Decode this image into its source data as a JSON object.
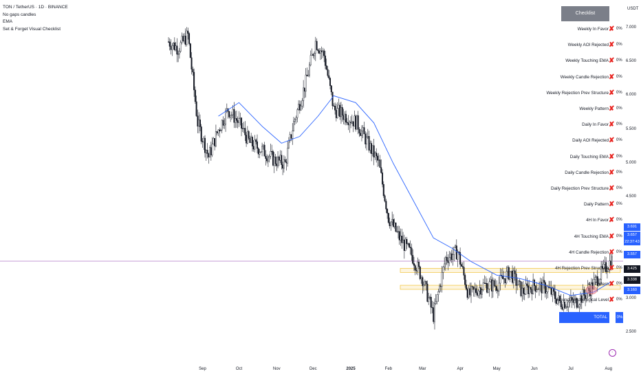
{
  "legend": {
    "symbol_line": "TON / TetherUS · 1D · BINANCE",
    "items": [
      "No gaps candles",
      "EMA",
      "Set & Forget Visual Checklist"
    ]
  },
  "currency": "USDT",
  "colors": {
    "up": "#131722",
    "down": "#131722",
    "ema": "#2962ff",
    "fail": "#e8231f",
    "total_bg": "#2962ff",
    "header_bg": "#7b7f89",
    "zone": "#f2c94c"
  },
  "checklist": {
    "title": "Checklist",
    "items": [
      {
        "label": "Weekly In Favor",
        "mark": "✘",
        "pct": "0%"
      },
      {
        "label": "Weekly AOI Rejected",
        "mark": "✘",
        "pct": "0%"
      },
      {
        "label": "Weekly Touching EMA",
        "mark": "✘",
        "pct": "0%"
      },
      {
        "label": "Weekly Candle Rejection",
        "mark": "✘",
        "pct": "0%"
      },
      {
        "label": "Weekly Rejection Prev Structure",
        "mark": "✘",
        "pct": "0%"
      },
      {
        "label": "Weekly Pattern",
        "mark": "✘",
        "pct": "0%"
      },
      {
        "label": "Daily In Favor",
        "mark": "✘",
        "pct": "0%"
      },
      {
        "label": "Daily AOI Rejected",
        "mark": "✘",
        "pct": "0%"
      },
      {
        "label": "Daily Touching EMA",
        "mark": "✘",
        "pct": "0%"
      },
      {
        "label": "Daily Candle Rejection",
        "mark": "✘",
        "pct": "0%"
      },
      {
        "label": "Daily Rejection Prev Structure",
        "mark": "✘",
        "pct": "0%"
      },
      {
        "label": "Daily Pattern",
        "mark": "✘",
        "pct": "0%"
      },
      {
        "label": "4H In Favor",
        "mark": "✘",
        "pct": "0%"
      },
      {
        "label": "4H Touching EMA",
        "mark": "✘",
        "pct": "0%"
      },
      {
        "label": "4H Candle Rejection",
        "mark": "✘",
        "pct": "0%"
      },
      {
        "label": "4H Rejection Prev Structure",
        "mark": "✘",
        "pct": "0%"
      },
      {
        "label": "4H Pattern",
        "mark": "✘",
        "pct": "0%"
      },
      {
        "label": "Round Psychological Level",
        "mark": "✘",
        "pct": "0%"
      }
    ],
    "total_label": "TOTAL",
    "total_pct": "0%"
  },
  "price_axis": {
    "ticks": [
      "7.000",
      "6.500",
      "6.000",
      "5.500",
      "5.000",
      "4.500",
      "3.000",
      "2.500"
    ],
    "tags": [
      {
        "text": "3.691",
        "color": "#2962ff"
      },
      {
        "text": "3.657",
        "color": "#2962ff"
      },
      {
        "text": "22:37:43",
        "color": "#2962ff"
      },
      {
        "text": "3.557",
        "color": "#2962ff"
      },
      {
        "text": "3.425",
        "color": "#131722"
      },
      {
        "text": "3.338",
        "color": "#131722"
      },
      {
        "text": "3.160",
        "color": "#2962ff"
      }
    ]
  },
  "time_axis": {
    "labels": [
      {
        "text": "Sep",
        "bold": false
      },
      {
        "text": "Oct",
        "bold": false
      },
      {
        "text": "Nov",
        "bold": false
      },
      {
        "text": "Dec",
        "bold": false
      },
      {
        "text": "2025",
        "bold": true
      },
      {
        "text": "Feb",
        "bold": false
      },
      {
        "text": "Mar",
        "bold": false
      },
      {
        "text": "Apr",
        "bold": false
      },
      {
        "text": "May",
        "bold": false
      },
      {
        "text": "Jun",
        "bold": false
      },
      {
        "text": "Jul",
        "bold": false
      },
      {
        "text": "Aug",
        "bold": false
      }
    ]
  },
  "chart_data": {
    "type": "candlestick",
    "symbol": "TON / TetherUS",
    "interval": "1D",
    "exchange": "BINANCE",
    "currency": "USDT",
    "x_range": [
      "2024-08-04",
      "2025-08-04"
    ],
    "y_range": [
      2.4,
      7.2
    ],
    "price_path": [
      [
        "2024-08-04",
        6.8
      ],
      [
        "2024-08-12",
        6.7
      ],
      [
        "2024-08-20",
        6.9
      ],
      [
        "2024-08-28",
        5.6
      ],
      [
        "2024-09-06",
        5.1
      ],
      [
        "2024-09-14",
        5.5
      ],
      [
        "2024-09-22",
        5.8
      ],
      [
        "2024-10-01",
        5.6
      ],
      [
        "2024-10-10",
        5.3
      ],
      [
        "2024-10-20",
        5.2
      ],
      [
        "2024-10-30",
        5.05
      ],
      [
        "2024-11-08",
        5.0
      ],
      [
        "2024-11-15",
        5.6
      ],
      [
        "2024-11-25",
        6.2
      ],
      [
        "2024-12-03",
        6.8
      ],
      [
        "2024-12-10",
        6.6
      ],
      [
        "2024-12-18",
        5.8
      ],
      [
        "2024-12-28",
        5.7
      ],
      [
        "2025-01-06",
        5.6
      ],
      [
        "2025-01-15",
        5.3
      ],
      [
        "2025-01-24",
        5.0
      ],
      [
        "2025-02-01",
        4.2
      ],
      [
        "2025-02-10",
        3.9
      ],
      [
        "2025-02-20",
        3.65
      ],
      [
        "2025-03-01",
        3.3
      ],
      [
        "2025-03-10",
        2.75
      ],
      [
        "2025-03-20",
        3.6
      ],
      [
        "2025-03-30",
        3.7
      ],
      [
        "2025-04-08",
        3.05
      ],
      [
        "2025-04-20",
        3.2
      ],
      [
        "2025-05-01",
        3.2
      ],
      [
        "2025-05-12",
        3.4
      ],
      [
        "2025-05-22",
        3.1
      ],
      [
        "2025-06-01",
        3.2
      ],
      [
        "2025-06-12",
        3.15
      ],
      [
        "2025-06-22",
        2.95
      ],
      [
        "2025-07-05",
        2.95
      ],
      [
        "2025-07-15",
        3.1
      ],
      [
        "2025-07-25",
        3.35
      ],
      [
        "2025-08-03",
        3.56
      ]
    ],
    "ema_path": [
      [
        "2024-09-14",
        5.7
      ],
      [
        "2024-10-01",
        5.9
      ],
      [
        "2024-10-20",
        5.55
      ],
      [
        "2024-11-05",
        5.3
      ],
      [
        "2024-11-20",
        5.4
      ],
      [
        "2024-12-05",
        5.7
      ],
      [
        "2024-12-18",
        6.0
      ],
      [
        "2025-01-05",
        5.9
      ],
      [
        "2025-01-20",
        5.6
      ],
      [
        "2025-02-05",
        5.0
      ],
      [
        "2025-02-20",
        4.5
      ],
      [
        "2025-03-10",
        3.9
      ],
      [
        "2025-03-25",
        3.75
      ],
      [
        "2025-04-10",
        3.55
      ],
      [
        "2025-05-01",
        3.35
      ],
      [
        "2025-05-20",
        3.3
      ],
      [
        "2025-06-10",
        3.2
      ],
      [
        "2025-07-01",
        3.05
      ],
      [
        "2025-07-20",
        3.1
      ],
      [
        "2025-08-03",
        3.25
      ]
    ],
    "zones": [
      {
        "from": 3.39,
        "to": 3.45
      },
      {
        "from": 3.14,
        "to": 3.2
      }
    ],
    "horizontal_line": 3.557
  }
}
